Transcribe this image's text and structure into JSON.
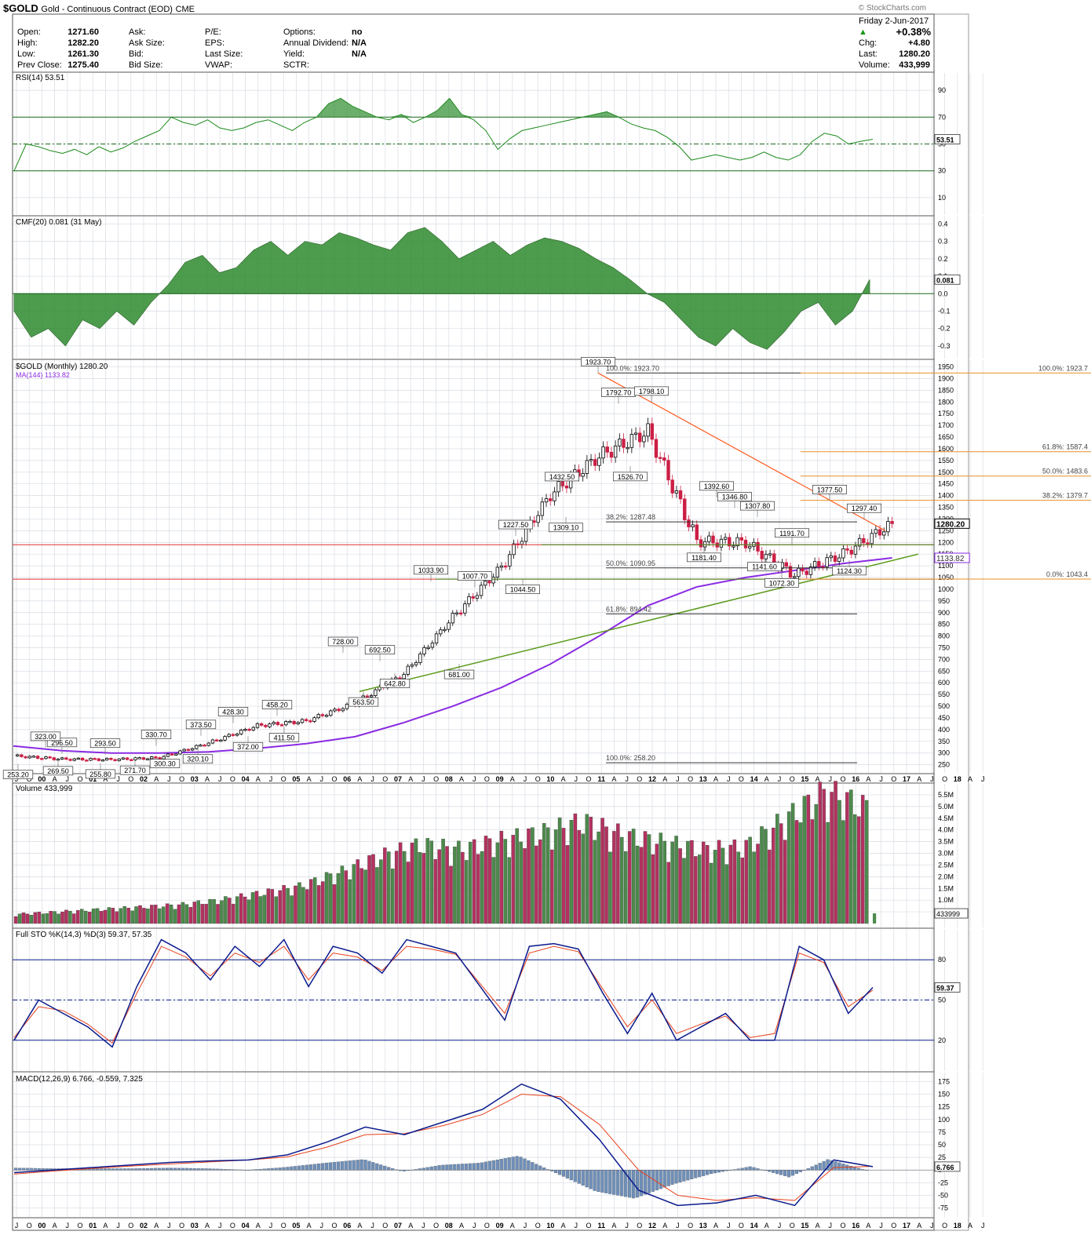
{
  "header": {
    "symbol": "$GOLD",
    "name": "Gold - Continuous Contract (EOD)",
    "exchange": "CME",
    "watermark": "© StockCharts.com",
    "date": "Friday   2-Jun-2017",
    "change_pct": "+0.38%",
    "quote": [
      {
        "label": "Open:",
        "value": "1271.60"
      },
      {
        "label": "High:",
        "value": "1282.20"
      },
      {
        "label": "Low:",
        "value": "1261.30"
      },
      {
        "label": "Prev Close:",
        "value": "1275.40"
      }
    ],
    "col2": [
      "Ask:",
      "Ask Size:",
      "Bid:",
      "Bid Size:"
    ],
    "col3": [
      "P/E:",
      "EPS:",
      "Last Size:",
      "VWAP:"
    ],
    "col4": [
      {
        "label": "Options:",
        "value": "no"
      },
      {
        "label": "Annual Dividend:",
        "value": "N/A"
      },
      {
        "label": "Yield:",
        "value": "N/A"
      },
      {
        "label": "SCTR:",
        "value": ""
      }
    ],
    "right": [
      {
        "label": "Chg:",
        "value": "+4.80"
      },
      {
        "label": "Last:",
        "value": "1280.20"
      },
      {
        "label": "Volume:",
        "value": "433,999"
      }
    ]
  },
  "colors": {
    "up": "#000000",
    "down": "#cc1f45",
    "rsi": "#1a8a1a",
    "fill_green": "#2e8b2e",
    "ma": "#8a2be2",
    "trend": "#ff5a1f",
    "support": "#5a9a1a",
    "red_line": "#e03030",
    "vol_up": "#4c8a4c",
    "vol_down": "#b3325f",
    "sto_k": "#0a1a8c",
    "sto_d": "#e8401a",
    "macd_hist": "#6f8fb8",
    "grid": "#d8dbe3",
    "orange_fib": "#e8902a"
  },
  "x_axis": {
    "labels": [
      "J",
      "O",
      "00",
      "A",
      "J",
      "O",
      "01",
      "A",
      "J",
      "O",
      "02",
      "A",
      "J",
      "O",
      "03",
      "A",
      "J",
      "O",
      "04",
      "A",
      "J",
      "O",
      "05",
      "A",
      "J",
      "O",
      "06",
      "A",
      "J",
      "O",
      "07",
      "A",
      "J",
      "O",
      "08",
      "A",
      "J",
      "O",
      "09",
      "A",
      "J",
      "O",
      "10",
      "A",
      "J",
      "O",
      "11",
      "A",
      "J",
      "O",
      "12",
      "A",
      "J",
      "O",
      "13",
      "A",
      "J",
      "O",
      "14",
      "A",
      "J",
      "O",
      "15",
      "A",
      "J",
      "O",
      "16",
      "A",
      "J",
      "O",
      "17",
      "A",
      "J",
      "O",
      "18",
      "A",
      "J"
    ]
  },
  "panels": {
    "rsi": {
      "title": "RSI(14) 53.51",
      "ticks": [
        "90",
        "70",
        "50",
        "30",
        "10"
      ],
      "last_label": "53.51"
    },
    "cmf": {
      "title": "CMF(20) 0.081 (31 May)",
      "ticks": [
        "0.4",
        "0.3",
        "0.2",
        "0.1",
        "0.0",
        "-0.1",
        "-0.2",
        "-0.3"
      ],
      "last_label": "0.081"
    },
    "price": {
      "title": "$GOLD (Monthly) 1280.20",
      "ma_label": "MA(144) 1133.82",
      "ticks": [
        "1950",
        "1900",
        "1850",
        "1800",
        "1750",
        "1700",
        "1650",
        "1600",
        "1550",
        "1500",
        "1450",
        "1400",
        "1350",
        "1300",
        "1250",
        "1200",
        "1150",
        "1100",
        "1050",
        "1000",
        "950",
        "900",
        "850",
        "800",
        "750",
        "700",
        "650",
        "600",
        "550",
        "500",
        "450",
        "400",
        "350",
        "300",
        "250"
      ],
      "last_label": "1280.20",
      "ma_last_label": "1133.82",
      "fib_inner": [
        "100.0%: 1923.70",
        "38.2%: 1287.48",
        "50.0%: 1090.95",
        "61.8%: 894.42",
        "100.0%: 258.20"
      ],
      "fib_outer": [
        "100.0%: 1923.7",
        "61.8%: 1587.4",
        "50.0%: 1483.6",
        "38.2%: 1379.7",
        "0.0%: 1043.4"
      ],
      "annotations": [
        "1923.70",
        "1792.70",
        "1798.10",
        "1526.70",
        "1432.50",
        "1309.10",
        "1227.50",
        "1044.50",
        "1033.90",
        "1007.70",
        "681.00",
        "728.00",
        "692.50",
        "642.80",
        "563.50",
        "458.20",
        "411.50",
        "428.30",
        "372.00",
        "373.50",
        "320.10",
        "330.70",
        "300.30",
        "293.50",
        "271.70",
        "255.80",
        "296.50",
        "269.50",
        "323.00",
        "253.20",
        "1392.60",
        "1346.80",
        "1307.80",
        "1181.40",
        "1191.70",
        "1141.60",
        "1072.30",
        "1377.50",
        "1297.40",
        "1124.30"
      ]
    },
    "volume": {
      "title": "Volume 433,999",
      "ticks": [
        "5.5M",
        "5.0M",
        "4.5M",
        "4.0M",
        "3.5M",
        "3.0M",
        "2.5M",
        "2.0M",
        "1.5M",
        "1.0M",
        "0.5M"
      ],
      "last_label": "433999"
    },
    "sto": {
      "title": "Full STO %K(14,3) %D(3) 59.37, 57.35",
      "k_value": "59.37",
      "d_value": "57.35",
      "ticks": [
        "80",
        "50",
        "20"
      ],
      "last_label": "59.37"
    },
    "macd": {
      "title": "MACD(12,26,9) 6.766, -0.559, 7.325",
      "v1": "6.766",
      "v2": "-0.559",
      "v3": "7.325",
      "ticks": [
        "175",
        "150",
        "125",
        "100",
        "75",
        "50",
        "25",
        "0",
        "-25",
        "-50",
        "-75"
      ],
      "last_label": "6.766"
    }
  },
  "chart_data": [
    {
      "type": "line",
      "title": "RSI(14) 53.51",
      "series": [
        {
          "name": "RSI(14)",
          "values": [
            30,
            50,
            48,
            45,
            43,
            46,
            42,
            48,
            44,
            47,
            52,
            56,
            60,
            70,
            66,
            64,
            68,
            62,
            60,
            62,
            66,
            68,
            64,
            60,
            66,
            70,
            80,
            84,
            78,
            74,
            70,
            68,
            72,
            66,
            70,
            75,
            84,
            72,
            68,
            60,
            46,
            54,
            60,
            62,
            64,
            66,
            68,
            70,
            72,
            74,
            70,
            65,
            62,
            60,
            55,
            48,
            38,
            40,
            42,
            40,
            38,
            40,
            44,
            40,
            38,
            42,
            52,
            58,
            56,
            50,
            52,
            53.51
          ]
        }
      ]
    },
    {
      "type": "area",
      "title": "CMF(20) 0.081 (31 May)",
      "series": [
        {
          "name": "CMF(20)",
          "values": [
            -0.1,
            -0.25,
            -0.2,
            -0.3,
            -0.15,
            -0.2,
            -0.1,
            -0.18,
            -0.05,
            0.05,
            0.18,
            0.22,
            0.12,
            0.15,
            0.25,
            0.3,
            0.22,
            0.3,
            0.28,
            0.35,
            0.32,
            0.28,
            0.25,
            0.35,
            0.38,
            0.3,
            0.2,
            0.25,
            0.3,
            0.22,
            0.28,
            0.32,
            0.3,
            0.26,
            0.2,
            0.15,
            0.08,
            0.0,
            -0.05,
            -0.15,
            -0.25,
            -0.3,
            -0.2,
            -0.28,
            -0.32,
            -0.22,
            -0.1,
            -0.05,
            -0.18,
            -0.1,
            0.081
          ]
        }
      ]
    },
    {
      "type": "line",
      "title": "$GOLD (Monthly) 1280.20",
      "ylim": [
        230,
        1960
      ],
      "x": [
        "1999",
        "2000",
        "2001",
        "2002",
        "2003",
        "2004",
        "2005",
        "2006",
        "2007",
        "2008",
        "2009",
        "2010",
        "2011",
        "2012",
        "2013",
        "2014",
        "2015",
        "2016",
        "2017"
      ],
      "series": [
        {
          "name": "$GOLD",
          "values": [
            288,
            274,
            272,
            280,
            343,
            417,
            437,
            513,
            638,
            880,
            1095,
            1405,
            1568,
            1675,
            1205,
            1199,
            1061,
            1151,
            1280.2
          ]
        },
        {
          "name": "MA(144) 1133.82",
          "values": [
            330,
            310,
            300,
            300,
            305,
            320,
            340,
            370,
            430,
            500,
            580,
            680,
            800,
            930,
            1010,
            1050,
            1080,
            1110,
            1133.82
          ]
        }
      ]
    },
    {
      "type": "bar",
      "title": "Volume 433,999",
      "ylim": [
        0,
        5.8
      ],
      "values": [
        0.4,
        0.5,
        0.6,
        0.7,
        0.8,
        1.0,
        1.3,
        1.6,
        2.2,
        2.9,
        3.4,
        3.2,
        3.6,
        3.9,
        4.4,
        3.8,
        3.5,
        3.2,
        3.3,
        4.5,
        5.7,
        5.0,
        0.434
      ]
    },
    {
      "type": "line",
      "title": "Full STO %K(14,3) %D(3) 59.37, 57.35",
      "ylim": [
        0,
        100
      ],
      "series": [
        {
          "name": "%K",
          "values": [
            20,
            50,
            40,
            30,
            15,
            60,
            95,
            85,
            65,
            90,
            75,
            95,
            60,
            90,
            85,
            70,
            95,
            90,
            85,
            60,
            35,
            90,
            92,
            88,
            55,
            25,
            55,
            20,
            30,
            40,
            20,
            20,
            90,
            80,
            40,
            59.37
          ]
        },
        {
          "name": "%D",
          "values": [
            22,
            45,
            42,
            32,
            18,
            55,
            90,
            82,
            68,
            85,
            78,
            90,
            65,
            85,
            82,
            72,
            90,
            88,
            84,
            62,
            40,
            85,
            90,
            86,
            58,
            30,
            50,
            25,
            32,
            38,
            22,
            25,
            85,
            78,
            45,
            57.35
          ]
        }
      ]
    },
    {
      "type": "line",
      "title": "MACD(12,26,9) 6.766, -0.559, 7.325",
      "ylim": [
        -85,
        185
      ],
      "series": [
        {
          "name": "MACD",
          "values": [
            -5,
            0,
            5,
            10,
            15,
            18,
            20,
            30,
            55,
            85,
            70,
            95,
            120,
            170,
            140,
            60,
            -40,
            -70,
            -65,
            -50,
            -70,
            20,
            6.766
          ]
        },
        {
          "name": "Signal",
          "values": [
            -8,
            -2,
            3,
            8,
            12,
            16,
            20,
            26,
            45,
            70,
            72,
            88,
            110,
            150,
            145,
            90,
            0,
            -50,
            -60,
            -55,
            -60,
            5,
            7.325
          ]
        }
      ]
    }
  ]
}
